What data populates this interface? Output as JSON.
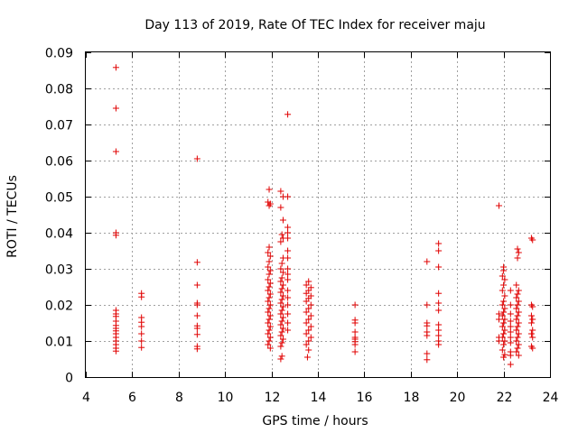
{
  "chart_data": {
    "type": "scatter",
    "title": "Day 113 of 2019, Rate Of TEC Index for receiver maju",
    "xlabel": "GPS time / hours",
    "ylabel": "ROTI / TECUs",
    "xlim": [
      4,
      24
    ],
    "ylim": [
      0,
      0.09
    ],
    "xticks": [
      4,
      6,
      8,
      10,
      12,
      14,
      16,
      18,
      20,
      22,
      24
    ],
    "xtick_labels": [
      "4",
      "6",
      "8",
      "10",
      "12",
      "14",
      "16",
      "18",
      "20",
      "22",
      "24"
    ],
    "yticks": [
      0,
      0.01,
      0.02,
      0.03,
      0.04,
      0.05,
      0.06,
      0.07,
      0.08,
      0.09
    ],
    "ytick_labels": [
      "0",
      "0.01",
      "0.02",
      "0.03",
      "0.04",
      "0.05",
      "0.06",
      "0.07",
      "0.08",
      "0.09"
    ],
    "grid": true,
    "marker": "+",
    "color": "#e00000",
    "series": [
      {
        "name": "ROTI",
        "points": [
          [
            5.3,
            0.0858
          ],
          [
            5.3,
            0.0745
          ],
          [
            5.3,
            0.0625
          ],
          [
            5.3,
            0.04
          ],
          [
            5.3,
            0.0393
          ],
          [
            5.3,
            0.0185
          ],
          [
            5.3,
            0.0175
          ],
          [
            5.3,
            0.0168
          ],
          [
            5.3,
            0.0155
          ],
          [
            5.3,
            0.0143
          ],
          [
            5.3,
            0.0135
          ],
          [
            5.3,
            0.0128
          ],
          [
            5.3,
            0.012
          ],
          [
            5.3,
            0.011
          ],
          [
            5.3,
            0.01
          ],
          [
            5.3,
            0.009
          ],
          [
            5.3,
            0.008
          ],
          [
            5.3,
            0.0072
          ],
          [
            6.4,
            0.0232
          ],
          [
            6.4,
            0.0222
          ],
          [
            6.4,
            0.0165
          ],
          [
            6.4,
            0.0152
          ],
          [
            6.4,
            0.014
          ],
          [
            6.4,
            0.012
          ],
          [
            6.4,
            0.01
          ],
          [
            6.4,
            0.0082
          ],
          [
            8.8,
            0.0605
          ],
          [
            8.8,
            0.0318
          ],
          [
            8.8,
            0.0255
          ],
          [
            8.8,
            0.0205
          ],
          [
            8.8,
            0.02
          ],
          [
            8.8,
            0.017
          ],
          [
            8.8,
            0.0142
          ],
          [
            8.8,
            0.0135
          ],
          [
            8.8,
            0.0118
          ],
          [
            8.8,
            0.0085
          ],
          [
            8.8,
            0.0078
          ],
          [
            11.9,
            0.052
          ],
          [
            11.85,
            0.0485
          ],
          [
            11.95,
            0.048
          ],
          [
            11.9,
            0.0475
          ],
          [
            11.9,
            0.036
          ],
          [
            11.85,
            0.0345
          ],
          [
            11.95,
            0.0335
          ],
          [
            11.9,
            0.032
          ],
          [
            11.85,
            0.0305
          ],
          [
            11.95,
            0.0295
          ],
          [
            11.9,
            0.0285
          ],
          [
            11.85,
            0.027
          ],
          [
            11.95,
            0.026
          ],
          [
            11.9,
            0.025
          ],
          [
            11.85,
            0.024
          ],
          [
            11.95,
            0.023
          ],
          [
            11.9,
            0.022
          ],
          [
            11.85,
            0.021
          ],
          [
            11.95,
            0.02
          ],
          [
            11.9,
            0.019
          ],
          [
            11.85,
            0.018
          ],
          [
            11.95,
            0.017
          ],
          [
            11.9,
            0.016
          ],
          [
            11.85,
            0.015
          ],
          [
            11.95,
            0.014
          ],
          [
            11.9,
            0.013
          ],
          [
            11.85,
            0.012
          ],
          [
            11.95,
            0.011
          ],
          [
            11.9,
            0.01
          ],
          [
            11.85,
            0.009
          ],
          [
            11.95,
            0.008
          ],
          [
            12.4,
            0.0515
          ],
          [
            12.5,
            0.05
          ],
          [
            12.4,
            0.047
          ],
          [
            12.5,
            0.0435
          ],
          [
            12.45,
            0.0395
          ],
          [
            12.5,
            0.0385
          ],
          [
            12.4,
            0.0375
          ],
          [
            12.5,
            0.033
          ],
          [
            12.45,
            0.0315
          ],
          [
            12.4,
            0.03
          ],
          [
            12.5,
            0.029
          ],
          [
            12.45,
            0.0275
          ],
          [
            12.4,
            0.0265
          ],
          [
            12.5,
            0.0255
          ],
          [
            12.45,
            0.0245
          ],
          [
            12.4,
            0.0235
          ],
          [
            12.5,
            0.0225
          ],
          [
            12.45,
            0.0215
          ],
          [
            12.4,
            0.0205
          ],
          [
            12.5,
            0.0195
          ],
          [
            12.45,
            0.0185
          ],
          [
            12.4,
            0.0175
          ],
          [
            12.5,
            0.0165
          ],
          [
            12.45,
            0.0155
          ],
          [
            12.4,
            0.0145
          ],
          [
            12.5,
            0.0135
          ],
          [
            12.45,
            0.0125
          ],
          [
            12.4,
            0.0115
          ],
          [
            12.5,
            0.0105
          ],
          [
            12.45,
            0.0095
          ],
          [
            12.4,
            0.0085
          ],
          [
            12.45,
            0.0058
          ],
          [
            12.4,
            0.005
          ],
          [
            12.7,
            0.0728
          ],
          [
            12.7,
            0.05
          ],
          [
            12.7,
            0.0415
          ],
          [
            12.7,
            0.04
          ],
          [
            12.7,
            0.0385
          ],
          [
            12.7,
            0.035
          ],
          [
            12.7,
            0.033
          ],
          [
            12.7,
            0.03
          ],
          [
            12.7,
            0.0285
          ],
          [
            12.7,
            0.027
          ],
          [
            12.7,
            0.024
          ],
          [
            12.7,
            0.022
          ],
          [
            12.7,
            0.02
          ],
          [
            12.7,
            0.0175
          ],
          [
            12.7,
            0.015
          ],
          [
            12.7,
            0.013
          ],
          [
            13.6,
            0.0265
          ],
          [
            13.5,
            0.0255
          ],
          [
            13.7,
            0.0248
          ],
          [
            13.6,
            0.024
          ],
          [
            13.5,
            0.0232
          ],
          [
            13.7,
            0.0225
          ],
          [
            13.6,
            0.0218
          ],
          [
            13.5,
            0.021
          ],
          [
            13.7,
            0.02
          ],
          [
            13.6,
            0.019
          ],
          [
            13.5,
            0.018
          ],
          [
            13.7,
            0.017
          ],
          [
            13.6,
            0.016
          ],
          [
            13.5,
            0.015
          ],
          [
            13.7,
            0.014
          ],
          [
            13.6,
            0.013
          ],
          [
            13.5,
            0.012
          ],
          [
            13.7,
            0.011
          ],
          [
            13.6,
            0.01
          ],
          [
            13.5,
            0.009
          ],
          [
            13.6,
            0.0075
          ],
          [
            13.55,
            0.0055
          ],
          [
            15.6,
            0.02
          ],
          [
            15.6,
            0.0158
          ],
          [
            15.6,
            0.015
          ],
          [
            15.6,
            0.0125
          ],
          [
            15.6,
            0.011
          ],
          [
            15.6,
            0.0105
          ],
          [
            15.6,
            0.0098
          ],
          [
            15.6,
            0.009
          ],
          [
            15.6,
            0.007
          ],
          [
            18.7,
            0.032
          ],
          [
            18.7,
            0.02
          ],
          [
            18.7,
            0.015
          ],
          [
            18.7,
            0.0142
          ],
          [
            18.7,
            0.0125
          ],
          [
            18.7,
            0.0115
          ],
          [
            18.7,
            0.0065
          ],
          [
            18.7,
            0.0048
          ],
          [
            19.2,
            0.037
          ],
          [
            19.2,
            0.035
          ],
          [
            19.2,
            0.0305
          ],
          [
            19.2,
            0.0232
          ],
          [
            19.2,
            0.0205
          ],
          [
            19.2,
            0.0185
          ],
          [
            19.2,
            0.0145
          ],
          [
            19.2,
            0.013
          ],
          [
            19.2,
            0.0115
          ],
          [
            19.2,
            0.01
          ],
          [
            19.2,
            0.009
          ],
          [
            21.8,
            0.0475
          ],
          [
            21.8,
            0.0175
          ],
          [
            21.8,
            0.016
          ],
          [
            21.8,
            0.011
          ],
          [
            21.8,
            0.01
          ],
          [
            22.0,
            0.0305
          ],
          [
            22.0,
            0.0295
          ],
          [
            21.95,
            0.028
          ],
          [
            22.05,
            0.027
          ],
          [
            22.0,
            0.0255
          ],
          [
            21.95,
            0.024
          ],
          [
            22.05,
            0.0225
          ],
          [
            22.0,
            0.021
          ],
          [
            21.95,
            0.02
          ],
          [
            22.05,
            0.019
          ],
          [
            22.0,
            0.018
          ],
          [
            21.95,
            0.017
          ],
          [
            22.05,
            0.016
          ],
          [
            22.0,
            0.015
          ],
          [
            21.95,
            0.014
          ],
          [
            22.05,
            0.013
          ],
          [
            22.0,
            0.012
          ],
          [
            21.95,
            0.011
          ],
          [
            22.05,
            0.01
          ],
          [
            22.0,
            0.009
          ],
          [
            21.95,
            0.0075
          ],
          [
            22.05,
            0.0062
          ],
          [
            22.0,
            0.0055
          ],
          [
            22.3,
            0.024
          ],
          [
            22.3,
            0.02
          ],
          [
            22.3,
            0.0175
          ],
          [
            22.3,
            0.0155
          ],
          [
            22.3,
            0.014
          ],
          [
            22.3,
            0.0125
          ],
          [
            22.3,
            0.011
          ],
          [
            22.3,
            0.0095
          ],
          [
            22.3,
            0.007
          ],
          [
            22.3,
            0.006
          ],
          [
            22.3,
            0.0035
          ],
          [
            22.6,
            0.0355
          ],
          [
            22.65,
            0.0345
          ],
          [
            22.6,
            0.033
          ],
          [
            22.55,
            0.0255
          ],
          [
            22.65,
            0.024
          ],
          [
            22.6,
            0.023
          ],
          [
            22.55,
            0.022
          ],
          [
            22.65,
            0.021
          ],
          [
            22.6,
            0.02
          ],
          [
            22.55,
            0.019
          ],
          [
            22.65,
            0.018
          ],
          [
            22.6,
            0.017
          ],
          [
            22.55,
            0.016
          ],
          [
            22.65,
            0.015
          ],
          [
            22.6,
            0.014
          ],
          [
            22.55,
            0.013
          ],
          [
            22.65,
            0.012
          ],
          [
            22.6,
            0.011
          ],
          [
            22.55,
            0.01
          ],
          [
            22.65,
            0.009
          ],
          [
            22.6,
            0.008
          ],
          [
            22.55,
            0.007
          ],
          [
            22.65,
            0.006
          ],
          [
            23.2,
            0.0385
          ],
          [
            23.25,
            0.038
          ],
          [
            23.2,
            0.02
          ],
          [
            23.25,
            0.0195
          ],
          [
            23.2,
            0.017
          ],
          [
            23.25,
            0.016
          ],
          [
            23.2,
            0.015
          ],
          [
            23.25,
            0.013
          ],
          [
            23.2,
            0.012
          ],
          [
            23.25,
            0.011
          ],
          [
            23.2,
            0.0085
          ],
          [
            23.25,
            0.008
          ]
        ]
      }
    ]
  }
}
